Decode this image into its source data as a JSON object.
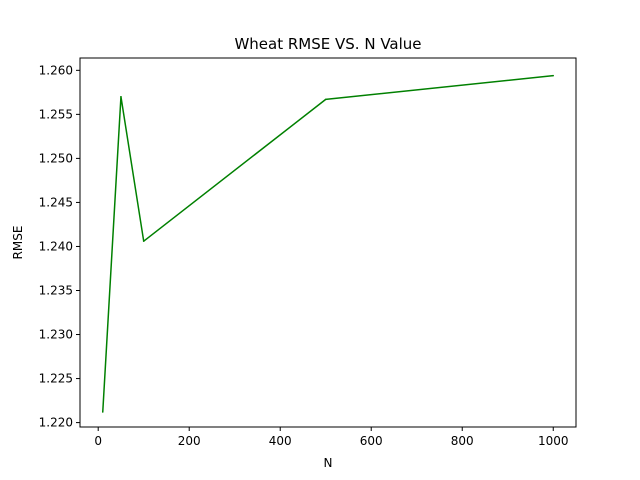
{
  "chart_data": {
    "type": "line",
    "title": "Wheat RMSE VS. N Value",
    "xlabel": "N",
    "ylabel": "RMSE",
    "xlim": [
      -40,
      1050
    ],
    "ylim": [
      1.2195,
      1.2614
    ],
    "xticks": [
      0,
      200,
      400,
      600,
      800,
      1000
    ],
    "xtick_labels": [
      "0",
      "200",
      "400",
      "600",
      "800",
      "1000"
    ],
    "yticks": [
      1.22,
      1.225,
      1.23,
      1.235,
      1.24,
      1.245,
      1.25,
      1.255,
      1.26
    ],
    "ytick_labels": [
      "1.220",
      "1.225",
      "1.230",
      "1.235",
      "1.240",
      "1.245",
      "1.250",
      "1.255",
      "1.260"
    ],
    "grid": false,
    "legend": false,
    "series": [
      {
        "color": "#008000",
        "x": [
          10,
          50,
          100,
          500,
          1000
        ],
        "y": [
          1.2212,
          1.257,
          1.2406,
          1.2567,
          1.2594
        ]
      }
    ]
  }
}
